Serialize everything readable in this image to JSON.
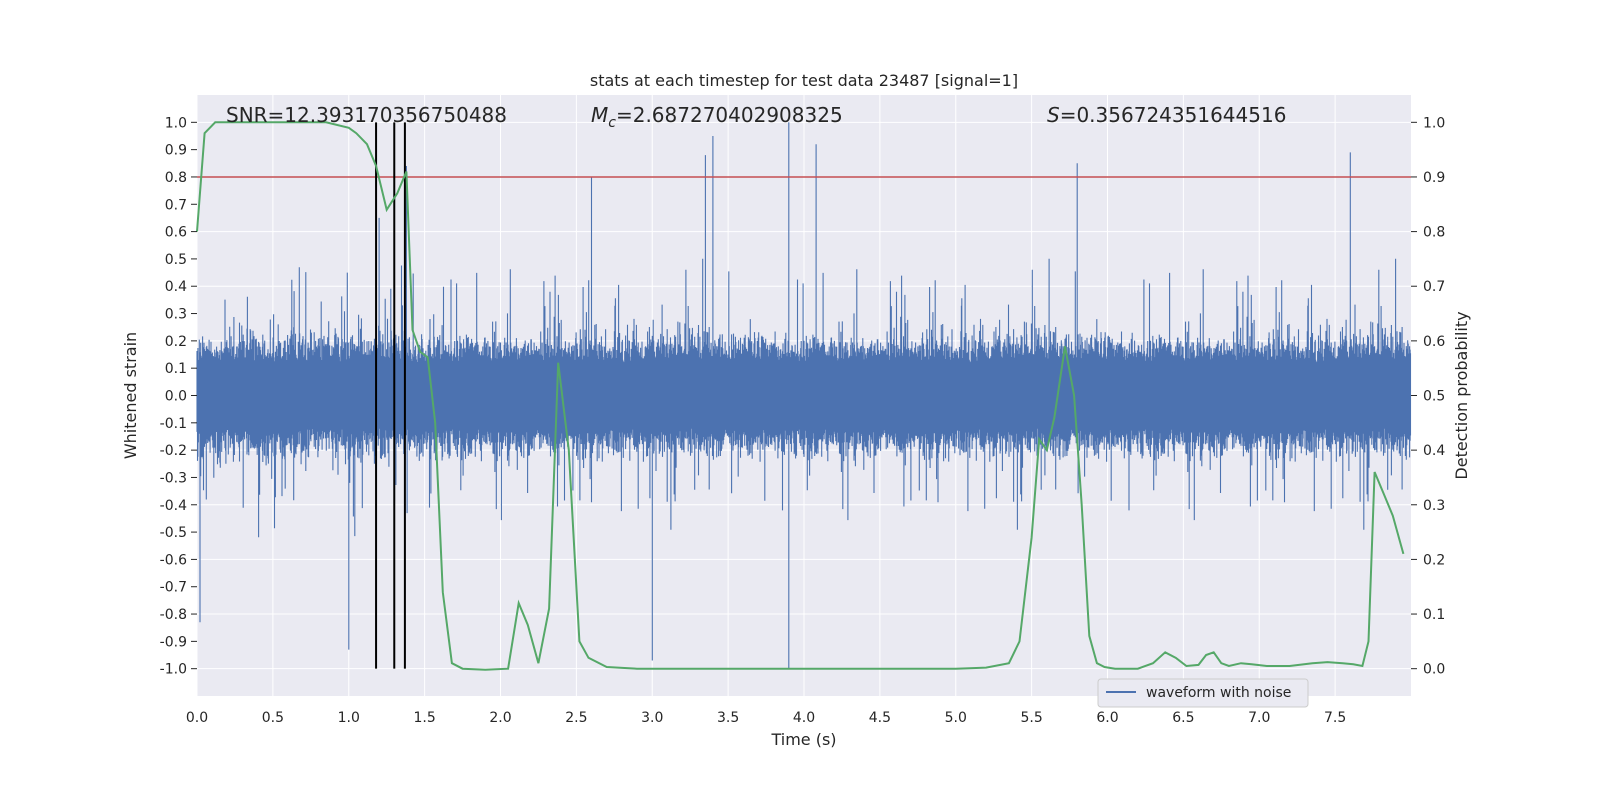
{
  "chart_data": {
    "type": "line",
    "title": "stats at each timestep for test data 23487 [signal=1]",
    "xlabel": "Time (s)",
    "ylabel": "Whitened strain",
    "y2label": "Detection probability",
    "xlim": [
      0.0,
      8.0
    ],
    "ylim": [
      -1.1,
      1.1
    ],
    "y2lim": [
      -0.05,
      1.05
    ],
    "xticks": [
      "0.0",
      "0.5",
      "1.0",
      "1.5",
      "2.0",
      "2.5",
      "3.0",
      "3.5",
      "4.0",
      "4.5",
      "5.0",
      "5.5",
      "6.0",
      "6.5",
      "7.0",
      "7.5"
    ],
    "yticks": [
      "1.0",
      "0.9",
      "0.8",
      "0.7",
      "0.6",
      "0.5",
      "0.4",
      "0.3",
      "0.2",
      "0.1",
      "0.0",
      "-0.1",
      "-0.2",
      "-0.3",
      "-0.4",
      "-0.5",
      "-0.6",
      "-0.7",
      "-0.8",
      "-0.9",
      "-1.0"
    ],
    "y2ticks": [
      "1.0",
      "0.9",
      "0.8",
      "0.7",
      "0.6",
      "0.5",
      "0.4",
      "0.3",
      "0.2",
      "0.1",
      "0.0"
    ],
    "annotations": {
      "snr": "SNR=12.393170356750488",
      "mc_symbol": "M",
      "mc_sub": "c",
      "mc_value": "=2.687270402908325",
      "s_symbol": "S",
      "s_value": "=0.356724351644516"
    },
    "threshold": {
      "y2": 0.9,
      "color": "#c44e52"
    },
    "vertical_markers": [
      1.18,
      1.3,
      1.37
    ],
    "legend": {
      "label": "waveform with noise",
      "placement": "lower-right"
    },
    "series": [
      {
        "name": "waveform with noise",
        "axis": "left",
        "color": "#4c72b0",
        "note": "dense noisy strain, |y| mostly < 0.4 with spikes up to 1.0",
        "spikes": [
          [
            1.2,
            0.65
          ],
          [
            1.3,
            0.74
          ],
          [
            1.38,
            0.84
          ],
          [
            2.6,
            0.8
          ],
          [
            3.35,
            0.88
          ],
          [
            3.4,
            0.95
          ],
          [
            3.9,
            1.0
          ],
          [
            3.9,
            -1.0
          ],
          [
            4.08,
            0.92
          ],
          [
            5.8,
            0.85
          ],
          [
            7.6,
            0.89
          ],
          [
            3.0,
            -0.97
          ],
          [
            1.0,
            -0.93
          ],
          [
            0.02,
            -0.83
          ]
        ]
      },
      {
        "name": "detection probability",
        "axis": "right",
        "color": "#55a868",
        "x": [
          0.0,
          0.05,
          0.12,
          0.3,
          0.5,
          0.7,
          0.85,
          1.0,
          1.05,
          1.12,
          1.18,
          1.25,
          1.32,
          1.38,
          1.42,
          1.47,
          1.52,
          1.57,
          1.62,
          1.68,
          1.75,
          1.9,
          2.05,
          2.12,
          2.18,
          2.25,
          2.32,
          2.38,
          2.45,
          2.52,
          2.58,
          2.7,
          2.9,
          3.2,
          3.5,
          3.8,
          4.2,
          4.6,
          5.0,
          5.2,
          5.35,
          5.42,
          5.5,
          5.55,
          5.6,
          5.65,
          5.72,
          5.78,
          5.83,
          5.88,
          5.93,
          5.98,
          6.05,
          6.2,
          6.3,
          6.38,
          6.45,
          6.52,
          6.6,
          6.65,
          6.7,
          6.75,
          6.8,
          6.88,
          6.95,
          7.05,
          7.2,
          7.35,
          7.45,
          7.55,
          7.62,
          7.68,
          7.72,
          7.76,
          7.82,
          7.88,
          7.95
        ],
        "y": [
          0.8,
          0.98,
          1.0,
          1.0,
          1.0,
          1.0,
          1.0,
          0.99,
          0.98,
          0.96,
          0.92,
          0.84,
          0.87,
          0.91,
          0.62,
          0.58,
          0.57,
          0.45,
          0.14,
          0.01,
          0.0,
          -0.002,
          0.0,
          0.12,
          0.08,
          0.01,
          0.11,
          0.56,
          0.4,
          0.05,
          0.02,
          0.003,
          0.0,
          0.0,
          0.0,
          0.0,
          0.0,
          0.0,
          0.0,
          0.002,
          0.01,
          0.05,
          0.24,
          0.42,
          0.4,
          0.46,
          0.59,
          0.5,
          0.3,
          0.06,
          0.01,
          0.003,
          0.0,
          0.0,
          0.01,
          0.03,
          0.02,
          0.005,
          0.007,
          0.025,
          0.03,
          0.01,
          0.005,
          0.01,
          0.008,
          0.005,
          0.005,
          0.01,
          0.012,
          0.01,
          0.008,
          0.005,
          0.05,
          0.36,
          0.32,
          0.28,
          0.21
        ]
      }
    ]
  }
}
